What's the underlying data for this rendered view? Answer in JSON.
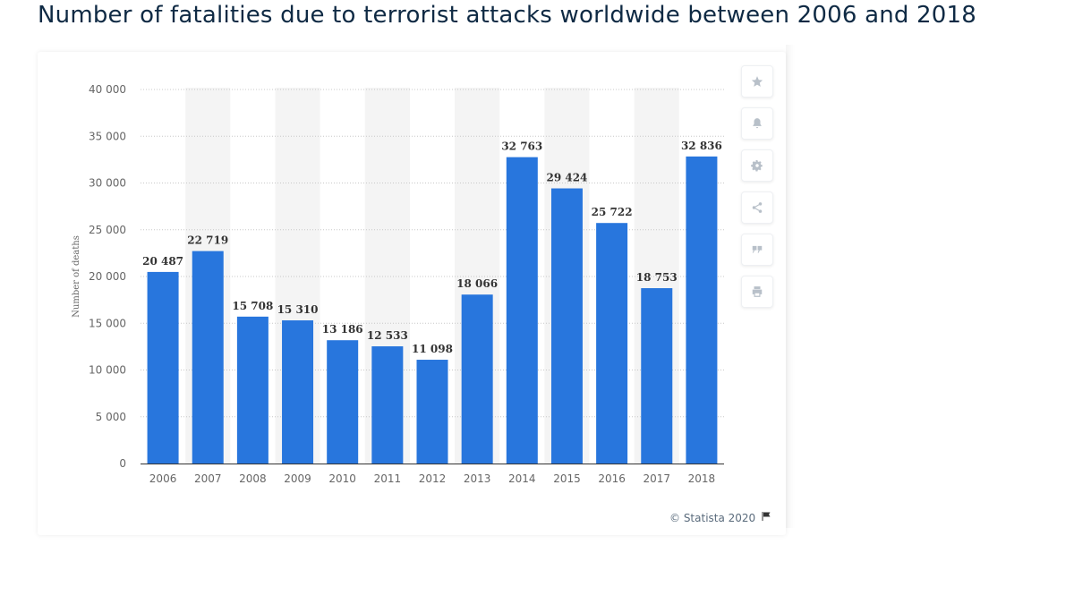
{
  "title": "Number of fatalities due to terrorist attacks worldwide between 2006 and 2018",
  "credit": {
    "text": "© Statista 2020",
    "icon": "flag-icon"
  },
  "toolbar": {
    "buttons": [
      {
        "name": "favorite",
        "icon": "star-icon"
      },
      {
        "name": "notify",
        "icon": "bell-icon"
      },
      {
        "name": "settings",
        "icon": "gear-icon"
      },
      {
        "name": "share",
        "icon": "share-icon"
      },
      {
        "name": "cite",
        "icon": "quote-icon"
      },
      {
        "name": "print",
        "icon": "print-icon"
      }
    ]
  },
  "colors": {
    "bar": "#2876dd",
    "title": "#0f2a44",
    "band": "#f4f4f4",
    "icon": "#b8c0c9"
  },
  "chart_data": {
    "type": "bar",
    "title": "Number of fatalities due to terrorist attacks worldwide between 2006 and 2018",
    "xlabel": "",
    "ylabel": "Number of deaths",
    "ylim": [
      0,
      40000
    ],
    "yticks": [
      0,
      5000,
      10000,
      15000,
      20000,
      25000,
      30000,
      35000,
      40000
    ],
    "ytick_labels": [
      "0",
      "5 000",
      "10 000",
      "15 000",
      "20 000",
      "25 000",
      "30 000",
      "35 000",
      "40 000"
    ],
    "categories": [
      "2006",
      "2007",
      "2008",
      "2009",
      "2010",
      "2011",
      "2012",
      "2013",
      "2014",
      "2015",
      "2016",
      "2017",
      "2018"
    ],
    "values": [
      20487,
      22719,
      15708,
      15310,
      13186,
      12533,
      11098,
      18066,
      32763,
      29424,
      25722,
      18753,
      32836
    ],
    "value_labels": [
      "20 487",
      "22 719",
      "15 708",
      "15 310",
      "13 186",
      "12 533",
      "11 098",
      "18 066",
      "32 763",
      "29 424",
      "25 722",
      "18 753",
      "32 836"
    ],
    "grid": true,
    "legend": "none"
  }
}
